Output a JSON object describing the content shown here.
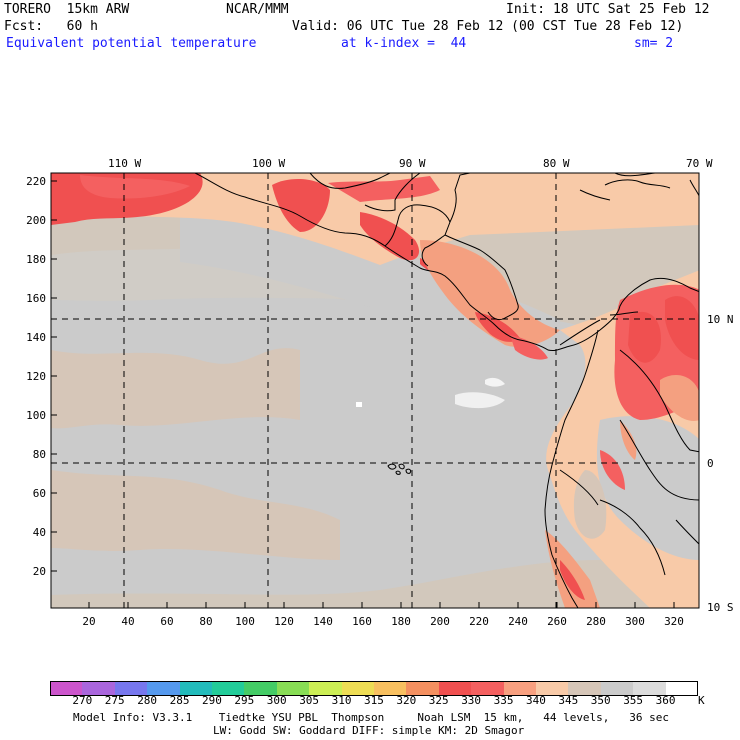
{
  "header": {
    "model": "TORERO  15km ARW",
    "org": "NCAR/MMM",
    "init": "Init: 18 UTC Sat 25 Feb 12",
    "fcst": "Fcst:   60 h",
    "valid": "Valid: 06 UTC Tue 28 Feb 12 (00 CST Tue 28 Feb 12)",
    "field": "Equivalent potential temperature",
    "level": "at k-index =  44",
    "smooth": "sm= 2"
  },
  "map": {
    "lon_labels": [
      "110 W",
      "100 W",
      "90 W",
      "80 W",
      "70 W"
    ],
    "lat_labels": [
      "10 N",
      "0",
      "10 S"
    ],
    "y_ticks": [
      "220",
      "200",
      "180",
      "160",
      "140",
      "120",
      "100",
      "80",
      "60",
      "40",
      "20"
    ],
    "x_ticks": [
      "20",
      "40",
      "60",
      "80",
      "100",
      "120",
      "140",
      "160",
      "180",
      "200",
      "220",
      "240",
      "260",
      "280",
      "300",
      "320"
    ]
  },
  "colorbar": {
    "labels": [
      "270",
      "275",
      "280",
      "285",
      "290",
      "295",
      "300",
      "305",
      "310",
      "315",
      "320",
      "325",
      "330",
      "335",
      "340",
      "345",
      "350",
      "355",
      "360"
    ],
    "unit": "K",
    "colors": [
      "#cc55cc",
      "#aa66dd",
      "#7777ee",
      "#5599ee",
      "#22bbbb",
      "#22cc99",
      "#44cc66",
      "#88dd55",
      "#ccee55",
      "#eedd55",
      "#f8c060",
      "#f49060",
      "#f05050",
      "#f46060",
      "#f8a080",
      "#f8caa8",
      "#d6c6b8",
      "#cbcbcb",
      "#dcdcdc",
      "#ffffff"
    ]
  },
  "footer": {
    "line1": "Model Info: V3.3.1    Tiedtke YSU PBL  Thompson     Noah LSM  15 km,   44 levels,   36 sec",
    "line2": "LW: Godd SW: Goddard DIFF: simple KM: 2D Smagor"
  }
}
